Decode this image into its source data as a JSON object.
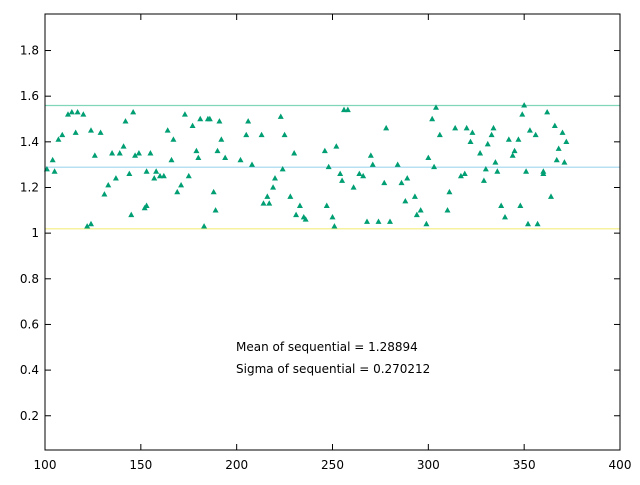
{
  "chart_data": {
    "type": "scatter",
    "title": "",
    "xlabel": "",
    "ylabel": "",
    "xlim": [
      100,
      400
    ],
    "ylim": [
      0.05,
      1.96
    ],
    "x_ticks": [
      100,
      150,
      200,
      250,
      300,
      350,
      400
    ],
    "x_tick_labels": [
      "100",
      "150",
      "200",
      "250",
      "300",
      "350",
      "400"
    ],
    "y_ticks": [
      0.2,
      0.4,
      0.6,
      0.8,
      1.0,
      1.2,
      1.4,
      1.6,
      1.8
    ],
    "y_tick_labels": [
      "0.2",
      "0.4",
      "0.6",
      "0.8",
      "1",
      "1.2",
      "1.4",
      "1.6",
      "1.8"
    ],
    "grid": false,
    "reference_lines": [
      {
        "y": 1.559,
        "color": "#7fd6b8"
      },
      {
        "y": 1.289,
        "color": "#9fd6ee"
      },
      {
        "y": 1.019,
        "color": "#f4ee80"
      }
    ],
    "annotations": [
      "Mean of sequential = 1.28894",
      "Sigma of sequential = 0.270212"
    ],
    "series": [
      {
        "color": "#009e73",
        "marker": "triangle",
        "points": [
          [
            101,
            1.28
          ],
          [
            104,
            1.32
          ],
          [
            105,
            1.27
          ],
          [
            107,
            1.41
          ],
          [
            109,
            1.43
          ],
          [
            112,
            1.52
          ],
          [
            114,
            1.53
          ],
          [
            116,
            1.44
          ],
          [
            117,
            1.53
          ],
          [
            120,
            1.52
          ],
          [
            122,
            1.03
          ],
          [
            124,
            1.45
          ],
          [
            124,
            1.04
          ],
          [
            126,
            1.34
          ],
          [
            129,
            1.44
          ],
          [
            131,
            1.17
          ],
          [
            133,
            1.21
          ],
          [
            135,
            1.35
          ],
          [
            137,
            1.24
          ],
          [
            139,
            1.35
          ],
          [
            141,
            1.38
          ],
          [
            142,
            1.49
          ],
          [
            144,
            1.26
          ],
          [
            145,
            1.08
          ],
          [
            146,
            1.53
          ],
          [
            147,
            1.34
          ],
          [
            149,
            1.35
          ],
          [
            152,
            1.11
          ],
          [
            153,
            1.27
          ],
          [
            153,
            1.12
          ],
          [
            155,
            1.35
          ],
          [
            157,
            1.24
          ],
          [
            158,
            1.27
          ],
          [
            160,
            1.25
          ],
          [
            162,
            1.25
          ],
          [
            164,
            1.45
          ],
          [
            166,
            1.32
          ],
          [
            167,
            1.41
          ],
          [
            169,
            1.18
          ],
          [
            171,
            1.21
          ],
          [
            173,
            1.52
          ],
          [
            175,
            1.25
          ],
          [
            177,
            1.47
          ],
          [
            179,
            1.36
          ],
          [
            180,
            1.33
          ],
          [
            181,
            1.5
          ],
          [
            183,
            1.03
          ],
          [
            185,
            1.5
          ],
          [
            186,
            1.5
          ],
          [
            188,
            1.18
          ],
          [
            189,
            1.1
          ],
          [
            190,
            1.36
          ],
          [
            191,
            1.49
          ],
          [
            192,
            1.41
          ],
          [
            194,
            1.33
          ],
          [
            202,
            1.32
          ],
          [
            205,
            1.43
          ],
          [
            206,
            1.49
          ],
          [
            208,
            1.3
          ],
          [
            213,
            1.43
          ],
          [
            214,
            1.13
          ],
          [
            216,
            1.16
          ],
          [
            217,
            1.13
          ],
          [
            219,
            1.2
          ],
          [
            220,
            1.24
          ],
          [
            223,
            1.51
          ],
          [
            224,
            1.28
          ],
          [
            225,
            1.43
          ],
          [
            228,
            1.16
          ],
          [
            230,
            1.35
          ],
          [
            231,
            1.08
          ],
          [
            233,
            1.12
          ],
          [
            235,
            1.07
          ],
          [
            236,
            1.06
          ],
          [
            246,
            1.36
          ],
          [
            247,
            1.12
          ],
          [
            248,
            1.29
          ],
          [
            250,
            1.07
          ],
          [
            251,
            1.03
          ],
          [
            252,
            1.38
          ],
          [
            254,
            1.26
          ],
          [
            255,
            1.23
          ],
          [
            256,
            1.54
          ],
          [
            258,
            1.54
          ],
          [
            261,
            1.2
          ],
          [
            264,
            1.26
          ],
          [
            266,
            1.25
          ],
          [
            268,
            1.05
          ],
          [
            270,
            1.34
          ],
          [
            271,
            1.3
          ],
          [
            274,
            1.05
          ],
          [
            277,
            1.22
          ],
          [
            278,
            1.46
          ],
          [
            280,
            1.05
          ],
          [
            284,
            1.3
          ],
          [
            286,
            1.22
          ],
          [
            288,
            1.14
          ],
          [
            289,
            1.24
          ],
          [
            293,
            1.16
          ],
          [
            294,
            1.08
          ],
          [
            296,
            1.1
          ],
          [
            299,
            1.04
          ],
          [
            300,
            1.33
          ],
          [
            302,
            1.5
          ],
          [
            303,
            1.29
          ],
          [
            304,
            1.55
          ],
          [
            306,
            1.43
          ],
          [
            310,
            1.1
          ],
          [
            311,
            1.18
          ],
          [
            314,
            1.46
          ],
          [
            317,
            1.25
          ],
          [
            319,
            1.26
          ],
          [
            320,
            1.46
          ],
          [
            322,
            1.4
          ],
          [
            323,
            1.44
          ],
          [
            327,
            1.35
          ],
          [
            329,
            1.23
          ],
          [
            330,
            1.28
          ],
          [
            331,
            1.39
          ],
          [
            333,
            1.43
          ],
          [
            334,
            1.46
          ],
          [
            335,
            1.31
          ],
          [
            336,
            1.27
          ],
          [
            338,
            1.12
          ],
          [
            340,
            1.07
          ],
          [
            342,
            1.41
          ],
          [
            344,
            1.34
          ],
          [
            345,
            1.36
          ],
          [
            347,
            1.41
          ],
          [
            348,
            1.12
          ],
          [
            349,
            1.52
          ],
          [
            350,
            1.56
          ],
          [
            351,
            1.27
          ],
          [
            352,
            1.04
          ],
          [
            353,
            1.45
          ],
          [
            356,
            1.43
          ],
          [
            357,
            1.04
          ],
          [
            360,
            1.26
          ],
          [
            360,
            1.27
          ],
          [
            362,
            1.53
          ],
          [
            364,
            1.16
          ],
          [
            366,
            1.47
          ],
          [
            367,
            1.32
          ],
          [
            368,
            1.37
          ],
          [
            370,
            1.44
          ],
          [
            371,
            1.31
          ],
          [
            372,
            1.4
          ]
        ]
      }
    ]
  }
}
